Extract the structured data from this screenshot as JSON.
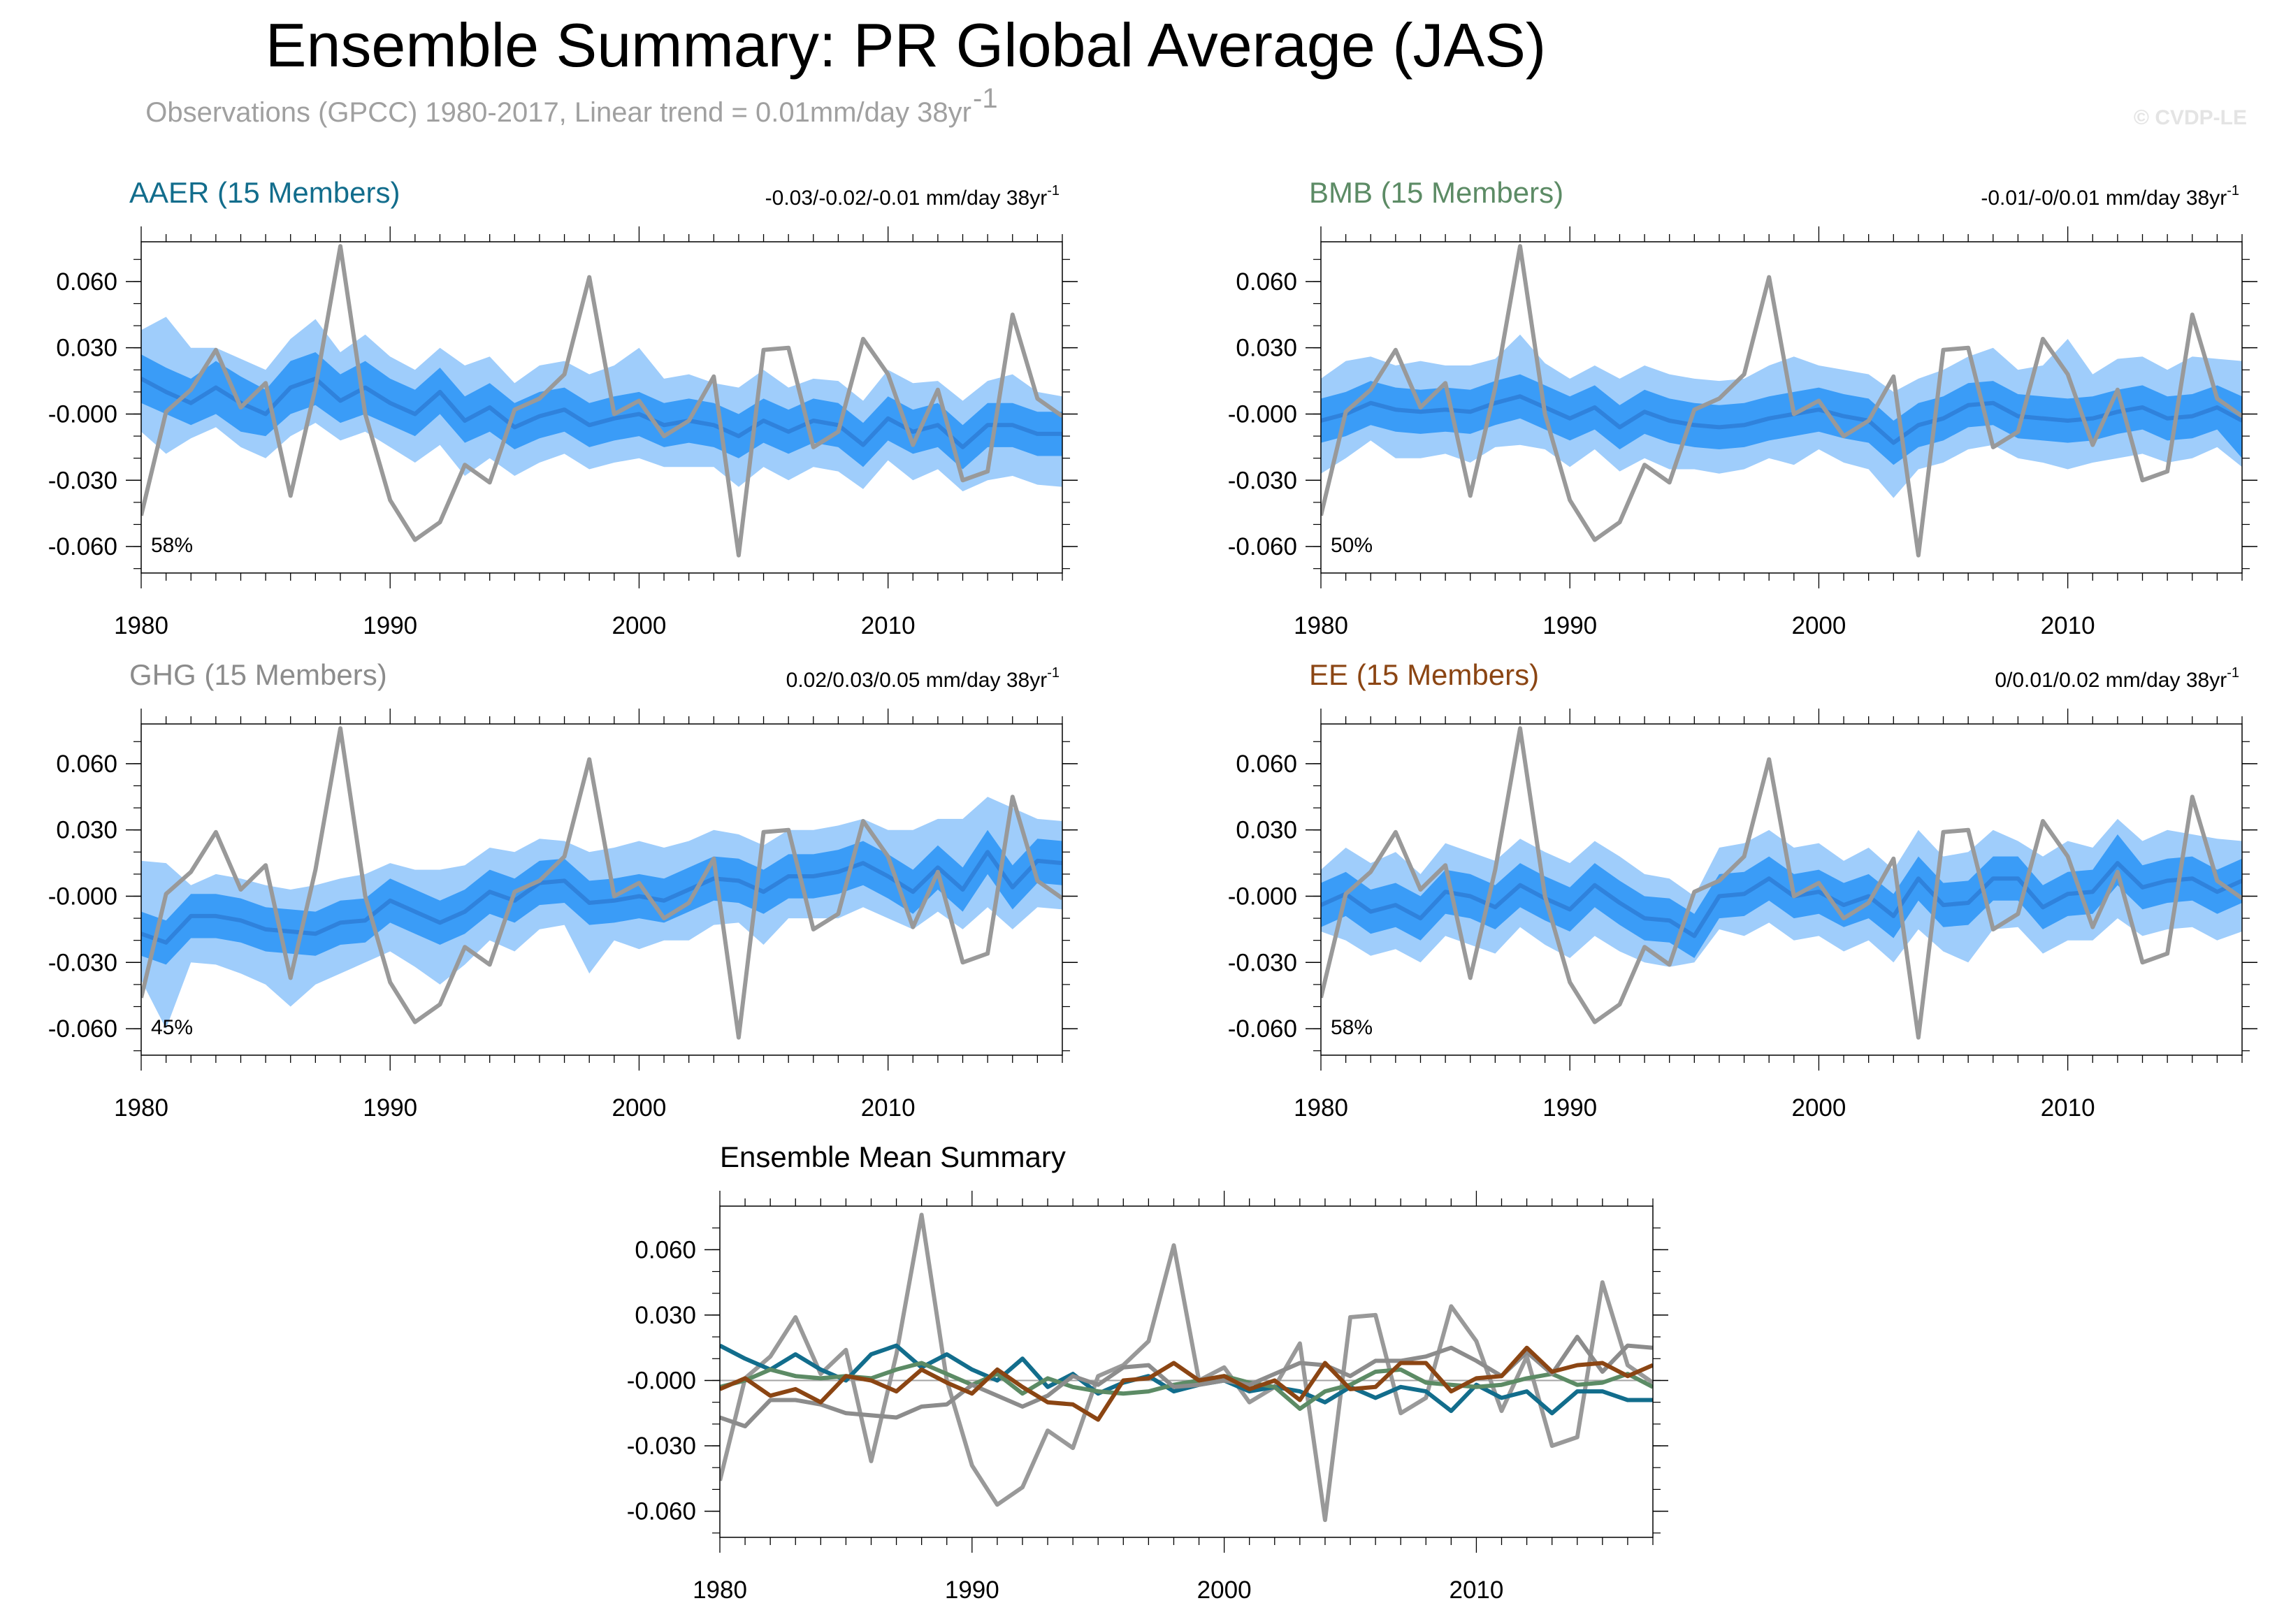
{
  "figure": {
    "title": "Ensemble Summary: PR Global Average (JAS)",
    "subtitle_prefix": "Observations (GPCC) 1980-2017, Linear trend = 0.01mm/day 38yr",
    "subtitle_sup": "-1",
    "credit": "© CVDP-LE"
  },
  "colors": {
    "obs": "#999999",
    "band_outer": "#9fcdfb",
    "band_inner": "#3a9cf7",
    "mean_line": "#2f82dc",
    "zero_line": "#a5a5a5",
    "AAER": "#126d8c",
    "BMB": "#5c8b65",
    "GHG": "#8c8c8c",
    "EE": "#8b4513"
  },
  "chart_data": [
    {
      "id": "AAER",
      "type": "line",
      "title": "AAER (15 Members)",
      "trend": "-0.03/-0.02/-0.01 mm/day 38yr",
      "trend_sup": "-1",
      "percent_label": "58%",
      "xlim": [
        1980,
        2017
      ],
      "ylim": [
        -0.072,
        0.078
      ],
      "xticks": [
        "1980",
        "1990",
        "2000",
        "2010"
      ],
      "yticks": [
        "0.060",
        "0.030",
        "-0.000",
        "-0.030",
        "-0.060"
      ],
      "mean": [
        0.016,
        0.01,
        0.005,
        0.012,
        0.005,
        0.0,
        0.012,
        0.016,
        0.006,
        0.012,
        0.005,
        0.0,
        0.01,
        -0.003,
        0.003,
        -0.006,
        -0.001,
        0.002,
        -0.005,
        -0.002,
        0.0,
        -0.005,
        -0.003,
        -0.005,
        -0.01,
        -0.003,
        -0.008,
        -0.003,
        -0.005,
        -0.014,
        -0.002,
        -0.008,
        -0.005,
        -0.015,
        -0.005,
        -0.005,
        -0.009,
        -0.009
      ],
      "inner_low": [
        0.005,
        0.0,
        -0.005,
        0.0,
        -0.008,
        -0.01,
        0.0,
        0.004,
        -0.004,
        0.0,
        -0.005,
        -0.01,
        0.0,
        -0.013,
        -0.008,
        -0.016,
        -0.011,
        -0.008,
        -0.015,
        -0.012,
        -0.01,
        -0.015,
        -0.013,
        -0.015,
        -0.02,
        -0.013,
        -0.018,
        -0.013,
        -0.015,
        -0.024,
        -0.012,
        -0.018,
        -0.015,
        -0.025,
        -0.015,
        -0.015,
        -0.019,
        -0.019
      ],
      "inner_high": [
        0.027,
        0.021,
        0.016,
        0.024,
        0.017,
        0.011,
        0.024,
        0.028,
        0.018,
        0.024,
        0.016,
        0.011,
        0.021,
        0.008,
        0.014,
        0.005,
        0.01,
        0.012,
        0.005,
        0.008,
        0.01,
        0.005,
        0.007,
        0.005,
        0.0,
        0.007,
        0.002,
        0.007,
        0.005,
        -0.004,
        0.008,
        0.002,
        0.005,
        -0.005,
        0.005,
        0.005,
        0.001,
        0.001
      ],
      "outer_low": [
        -0.008,
        -0.018,
        -0.011,
        -0.006,
        -0.015,
        -0.02,
        -0.01,
        -0.004,
        -0.012,
        -0.008,
        -0.015,
        -0.022,
        -0.014,
        -0.028,
        -0.02,
        -0.028,
        -0.022,
        -0.018,
        -0.025,
        -0.022,
        -0.02,
        -0.024,
        -0.024,
        -0.024,
        -0.033,
        -0.024,
        -0.03,
        -0.024,
        -0.026,
        -0.034,
        -0.021,
        -0.03,
        -0.025,
        -0.035,
        -0.03,
        -0.028,
        -0.032,
        -0.033
      ],
      "outer_high": [
        0.038,
        0.044,
        0.03,
        0.03,
        0.025,
        0.02,
        0.034,
        0.043,
        0.028,
        0.036,
        0.026,
        0.02,
        0.03,
        0.022,
        0.026,
        0.014,
        0.022,
        0.024,
        0.018,
        0.022,
        0.03,
        0.016,
        0.018,
        0.014,
        0.012,
        0.02,
        0.012,
        0.016,
        0.015,
        0.006,
        0.02,
        0.014,
        0.015,
        0.006,
        0.015,
        0.018,
        0.01,
        0.008
      ]
    },
    {
      "id": "BMB",
      "type": "line",
      "title": "BMB (15 Members)",
      "trend": "-0.01/-0/0.01 mm/day 38yr",
      "trend_sup": "-1",
      "percent_label": "50%",
      "xlim": [
        1980,
        2017
      ],
      "ylim": [
        -0.072,
        0.078
      ],
      "xticks": [
        "1980",
        "1990",
        "2000",
        "2010"
      ],
      "yticks": [
        "0.060",
        "0.030",
        "-0.000",
        "-0.030",
        "-0.060"
      ],
      "mean": [
        -0.003,
        0.0,
        0.005,
        0.002,
        0.001,
        0.002,
        0.001,
        0.005,
        0.008,
        0.003,
        -0.002,
        0.003,
        -0.006,
        0.001,
        -0.003,
        -0.005,
        -0.006,
        -0.005,
        -0.002,
        0.0,
        0.002,
        -0.001,
        -0.003,
        -0.013,
        -0.005,
        -0.002,
        0.004,
        0.005,
        -0.001,
        -0.002,
        -0.003,
        -0.002,
        0.001,
        0.003,
        -0.002,
        -0.001,
        0.003,
        -0.003
      ],
      "inner_low": [
        -0.013,
        -0.01,
        -0.005,
        -0.008,
        -0.009,
        -0.008,
        -0.009,
        -0.005,
        -0.002,
        -0.007,
        -0.012,
        -0.007,
        -0.016,
        -0.009,
        -0.013,
        -0.015,
        -0.016,
        -0.015,
        -0.012,
        -0.01,
        -0.008,
        -0.011,
        -0.013,
        -0.023,
        -0.015,
        -0.012,
        -0.006,
        -0.005,
        -0.011,
        -0.012,
        -0.013,
        -0.012,
        -0.009,
        -0.007,
        -0.012,
        -0.011,
        -0.007,
        -0.02
      ],
      "inner_high": [
        0.007,
        0.01,
        0.015,
        0.012,
        0.011,
        0.012,
        0.011,
        0.015,
        0.018,
        0.013,
        0.008,
        0.013,
        0.004,
        0.011,
        0.007,
        0.005,
        0.004,
        0.005,
        0.008,
        0.01,
        0.012,
        0.009,
        0.007,
        -0.003,
        0.005,
        0.008,
        0.014,
        0.015,
        0.009,
        0.008,
        0.007,
        0.008,
        0.011,
        0.013,
        0.008,
        0.009,
        0.013,
        0.008
      ],
      "outer_low": [
        -0.027,
        -0.02,
        -0.012,
        -0.02,
        -0.02,
        -0.018,
        -0.022,
        -0.015,
        -0.014,
        -0.016,
        -0.024,
        -0.016,
        -0.026,
        -0.02,
        -0.025,
        -0.025,
        -0.027,
        -0.025,
        -0.02,
        -0.023,
        -0.016,
        -0.022,
        -0.025,
        -0.038,
        -0.025,
        -0.022,
        -0.016,
        -0.014,
        -0.02,
        -0.022,
        -0.025,
        -0.022,
        -0.02,
        -0.018,
        -0.022,
        -0.02,
        -0.015,
        -0.024
      ],
      "outer_high": [
        0.016,
        0.024,
        0.026,
        0.022,
        0.024,
        0.022,
        0.022,
        0.025,
        0.036,
        0.023,
        0.016,
        0.022,
        0.016,
        0.022,
        0.018,
        0.016,
        0.015,
        0.016,
        0.022,
        0.026,
        0.022,
        0.02,
        0.018,
        0.01,
        0.016,
        0.02,
        0.026,
        0.03,
        0.02,
        0.022,
        0.034,
        0.018,
        0.025,
        0.026,
        0.02,
        0.026,
        0.025,
        0.024
      ]
    },
    {
      "id": "GHG",
      "type": "line",
      "title": "GHG (15 Members)",
      "trend": "0.02/0.03/0.05 mm/day 38yr",
      "trend_sup": "-1",
      "percent_label": "45%",
      "xlim": [
        1980,
        2017
      ],
      "ylim": [
        -0.072,
        0.078
      ],
      "xticks": [
        "1980",
        "1990",
        "2000",
        "2010"
      ],
      "yticks": [
        "0.060",
        "0.030",
        "-0.000",
        "-0.030",
        "-0.060"
      ],
      "mean": [
        -0.017,
        -0.021,
        -0.009,
        -0.009,
        -0.011,
        -0.015,
        -0.016,
        -0.017,
        -0.012,
        -0.011,
        -0.002,
        -0.007,
        -0.012,
        -0.007,
        0.002,
        -0.002,
        0.006,
        0.007,
        -0.003,
        -0.002,
        0.0,
        -0.002,
        0.003,
        0.008,
        0.007,
        0.002,
        0.009,
        0.009,
        0.011,
        0.015,
        0.009,
        0.002,
        0.013,
        0.003,
        0.02,
        0.004,
        0.016,
        0.015
      ],
      "inner_low": [
        -0.027,
        -0.031,
        -0.019,
        -0.019,
        -0.021,
        -0.025,
        -0.026,
        -0.027,
        -0.022,
        -0.021,
        -0.012,
        -0.017,
        -0.022,
        -0.017,
        -0.008,
        -0.012,
        -0.004,
        -0.003,
        -0.013,
        -0.012,
        -0.01,
        -0.012,
        -0.007,
        -0.002,
        -0.003,
        -0.008,
        -0.001,
        -0.001,
        0.001,
        0.005,
        -0.001,
        -0.008,
        0.003,
        -0.007,
        0.01,
        -0.006,
        0.006,
        0.005
      ],
      "inner_high": [
        -0.007,
        -0.011,
        0.001,
        0.001,
        -0.001,
        -0.005,
        -0.006,
        -0.007,
        -0.002,
        -0.001,
        0.008,
        0.003,
        -0.002,
        0.003,
        0.012,
        0.008,
        0.016,
        0.017,
        0.007,
        0.008,
        0.01,
        0.008,
        0.013,
        0.018,
        0.017,
        0.012,
        0.019,
        0.019,
        0.021,
        0.025,
        0.019,
        0.012,
        0.023,
        0.013,
        0.03,
        0.014,
        0.026,
        0.025
      ],
      "outer_low": [
        -0.038,
        -0.06,
        -0.03,
        -0.031,
        -0.035,
        -0.04,
        -0.05,
        -0.04,
        -0.035,
        -0.03,
        -0.025,
        -0.032,
        -0.04,
        -0.031,
        -0.02,
        -0.025,
        -0.015,
        -0.013,
        -0.035,
        -0.02,
        -0.024,
        -0.02,
        -0.02,
        -0.013,
        -0.012,
        -0.022,
        -0.01,
        -0.01,
        -0.01,
        -0.005,
        -0.01,
        -0.015,
        -0.007,
        -0.015,
        -0.005,
        -0.015,
        -0.005,
        -0.006
      ],
      "outer_high": [
        0.016,
        0.015,
        0.005,
        0.01,
        0.008,
        0.005,
        0.003,
        0.005,
        0.008,
        0.01,
        0.015,
        0.012,
        0.012,
        0.014,
        0.022,
        0.02,
        0.026,
        0.025,
        0.02,
        0.022,
        0.025,
        0.022,
        0.025,
        0.03,
        0.028,
        0.023,
        0.03,
        0.03,
        0.032,
        0.035,
        0.03,
        0.03,
        0.035,
        0.035,
        0.045,
        0.04,
        0.035,
        0.034
      ]
    },
    {
      "id": "EE",
      "type": "line",
      "title": "EE (15 Members)",
      "trend": "0/0.01/0.02 mm/day 38yr",
      "trend_sup": "-1",
      "percent_label": "58%",
      "xlim": [
        1980,
        2017
      ],
      "ylim": [
        -0.072,
        0.078
      ],
      "xticks": [
        "1980",
        "1990",
        "2000",
        "2010"
      ],
      "yticks": [
        "0.060",
        "0.030",
        "-0.000",
        "-0.030",
        "-0.060"
      ],
      "mean": [
        -0.004,
        0.001,
        -0.007,
        -0.004,
        -0.01,
        0.002,
        0.0,
        -0.005,
        0.005,
        -0.001,
        -0.006,
        0.005,
        -0.003,
        -0.01,
        -0.011,
        -0.018,
        0.0,
        0.001,
        0.008,
        0.0,
        0.002,
        -0.004,
        0.0,
        -0.009,
        0.008,
        -0.004,
        -0.003,
        0.008,
        0.008,
        -0.005,
        0.001,
        0.002,
        0.015,
        0.004,
        0.007,
        0.008,
        0.002,
        0.007
      ],
      "inner_low": [
        -0.014,
        -0.009,
        -0.017,
        -0.014,
        -0.02,
        -0.008,
        -0.01,
        -0.015,
        -0.005,
        -0.011,
        -0.016,
        -0.005,
        -0.013,
        -0.02,
        -0.021,
        -0.028,
        -0.01,
        -0.009,
        -0.002,
        -0.01,
        -0.008,
        -0.014,
        -0.01,
        -0.019,
        -0.002,
        -0.014,
        -0.013,
        -0.002,
        -0.002,
        -0.015,
        -0.009,
        -0.008,
        0.005,
        -0.006,
        -0.003,
        -0.002,
        -0.008,
        -0.003
      ],
      "inner_high": [
        0.006,
        0.011,
        0.003,
        0.006,
        0.0,
        0.012,
        0.01,
        0.005,
        0.015,
        0.009,
        0.004,
        0.015,
        0.007,
        0.0,
        -0.001,
        -0.008,
        0.01,
        0.011,
        0.018,
        0.01,
        0.012,
        0.006,
        0.01,
        0.001,
        0.018,
        0.006,
        0.007,
        0.018,
        0.018,
        0.005,
        0.011,
        0.012,
        0.028,
        0.014,
        0.017,
        0.018,
        0.012,
        0.017
      ],
      "outer_low": [
        -0.016,
        -0.02,
        -0.027,
        -0.024,
        -0.03,
        -0.018,
        -0.022,
        -0.026,
        -0.014,
        -0.022,
        -0.028,
        -0.018,
        -0.025,
        -0.03,
        -0.032,
        -0.03,
        -0.015,
        -0.018,
        -0.012,
        -0.02,
        -0.018,
        -0.025,
        -0.02,
        -0.03,
        -0.015,
        -0.025,
        -0.03,
        -0.015,
        -0.014,
        -0.026,
        -0.02,
        -0.02,
        -0.01,
        -0.018,
        -0.015,
        -0.014,
        -0.02,
        -0.016
      ],
      "outer_high": [
        0.012,
        0.022,
        0.015,
        0.02,
        0.01,
        0.024,
        0.02,
        0.016,
        0.026,
        0.02,
        0.015,
        0.025,
        0.018,
        0.01,
        0.008,
        0.0,
        0.022,
        0.024,
        0.03,
        0.022,
        0.024,
        0.016,
        0.022,
        0.012,
        0.03,
        0.018,
        0.02,
        0.03,
        0.025,
        0.018,
        0.025,
        0.022,
        0.035,
        0.025,
        0.03,
        0.028,
        0.026,
        0.025
      ]
    },
    {
      "id": "summary",
      "type": "line",
      "title": "Ensemble Mean Summary",
      "xlim": [
        1980,
        2017
      ],
      "ylim": [
        -0.072,
        0.08
      ],
      "xticks": [
        "1980",
        "1990",
        "2000",
        "2010"
      ],
      "yticks": [
        "0.060",
        "0.030",
        "-0.000",
        "-0.030",
        "-0.060"
      ],
      "series_ref": [
        "AAER",
        "BMB",
        "GHG",
        "EE"
      ]
    }
  ],
  "observations": {
    "name": "Observations (GPCC)",
    "values": [
      -0.046,
      0.001,
      0.011,
      0.029,
      0.003,
      0.014,
      -0.037,
      0.012,
      0.076,
      0.0,
      -0.039,
      -0.057,
      -0.049,
      -0.023,
      -0.031,
      0.002,
      0.007,
      0.018,
      0.062,
      0.0,
      0.006,
      -0.01,
      -0.003,
      0.017,
      -0.064,
      0.029,
      0.03,
      -0.015,
      -0.008,
      0.034,
      0.018,
      -0.014,
      0.011,
      -0.03,
      -0.026,
      0.045,
      0.007,
      -0.001
    ]
  }
}
